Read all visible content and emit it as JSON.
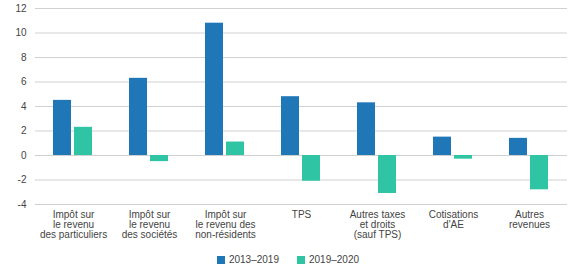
{
  "chart_data": {
    "type": "bar",
    "categories": [
      "Impôt sur\nle revenu\ndes particuliers",
      "Impôt sur\nle revenu\ndes sociétés",
      "Impôt sur\nle revenu des\nnon-résidents",
      "TPS",
      "Autres taxes\net droits\n(sauf TPS)",
      "Cotisations\nd'AE",
      "Autres\nrevenues"
    ],
    "series": [
      {
        "name": "2013–2019",
        "color": "#1f77b8",
        "values": [
          4.5,
          6.3,
          10.8,
          4.8,
          4.3,
          1.5,
          1.4
        ]
      },
      {
        "name": "2019–2020",
        "color": "#2ec4a4",
        "values": [
          2.3,
          -0.5,
          1.1,
          -2.1,
          -3.1,
          -0.3,
          -2.8
        ]
      }
    ],
    "ylim": [
      -4,
      12
    ],
    "yticks": [
      -4,
      -2,
      0,
      2,
      4,
      6,
      8,
      10,
      12
    ],
    "grid": true,
    "legend": "bottom"
  }
}
